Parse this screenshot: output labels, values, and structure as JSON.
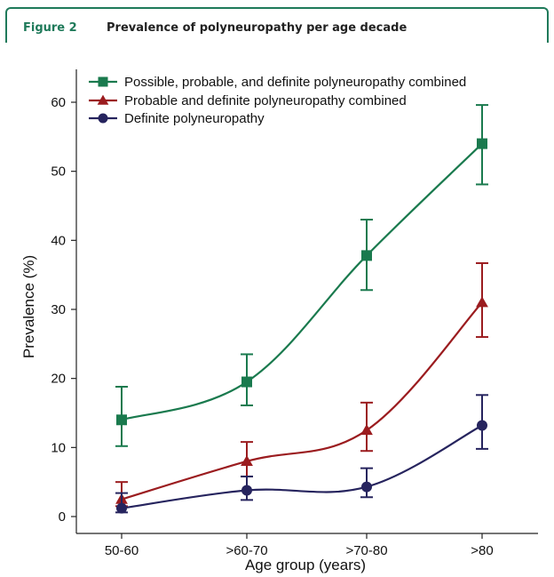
{
  "header": {
    "figure_label": "Figure 2",
    "title": "Prevalence of polyneuropathy per age decade"
  },
  "colors": {
    "accent": "#1f7a5a",
    "series_green": "#1a7a4e",
    "series_red": "#9b1c1f",
    "series_navy": "#26245e"
  },
  "chart_data": {
    "type": "line",
    "categories": [
      "50-60",
      ">60-70",
      ">70-80",
      ">80"
    ],
    "xlabel": "Age group (years)",
    "ylabel": "Prevalence (%)",
    "ylim": [
      0,
      65
    ],
    "yticks": [
      0,
      10,
      20,
      30,
      40,
      50,
      60
    ],
    "legend_position": "top-left",
    "grid": false,
    "series": [
      {
        "name": "Possible, probable, and definite polyneuropathy combined",
        "marker": "square",
        "color": "#1a7a4e",
        "values": [
          14.0,
          19.5,
          37.8,
          54.0
        ],
        "err_low": [
          10.2,
          16.1,
          32.8,
          48.1
        ],
        "err_high": [
          18.8,
          23.5,
          43.0,
          59.6
        ]
      },
      {
        "name": "Probable and definite polyneuropathy combined",
        "marker": "triangle",
        "color": "#9b1c1f",
        "values": [
          2.5,
          8.0,
          12.5,
          31.0
        ],
        "err_low": [
          1.5,
          5.8,
          9.5,
          26.0
        ],
        "err_high": [
          5.0,
          10.8,
          16.5,
          36.7
        ]
      },
      {
        "name": "Definite polyneuropathy",
        "marker": "circle",
        "color": "#26245e",
        "values": [
          1.2,
          3.8,
          4.3,
          13.2
        ],
        "err_low": [
          0.6,
          2.4,
          2.8,
          9.8
        ],
        "err_high": [
          3.4,
          5.8,
          7.0,
          17.6
        ]
      }
    ]
  }
}
